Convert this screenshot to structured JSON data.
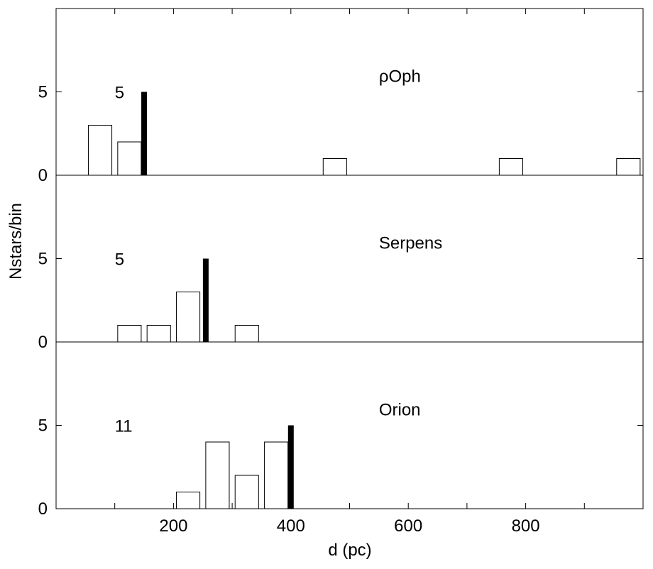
{
  "colors": {
    "frame": "#000000",
    "bar_fill": "#ffffff",
    "marker": "#000000"
  },
  "chart_data": {
    "type": "bar",
    "xlabel": "d (pc)",
    "ylabel": "Nstars/bin",
    "xlim": [
      0,
      1000
    ],
    "x_ticks": [
      200,
      400,
      600,
      800
    ],
    "x_minor_ticks": [
      100,
      300,
      500,
      700,
      900
    ],
    "y_ticks_per_panel": [
      0,
      5
    ],
    "bin_width": 40,
    "grid": false,
    "panels": [
      {
        "name": "ρOph",
        "count_label": "5",
        "ylim": [
          0,
          10
        ],
        "marker_d": 150,
        "marker_value": 5,
        "bars": [
          {
            "d": 75,
            "value": 3
          },
          {
            "d": 125,
            "value": 2
          },
          {
            "d": 475,
            "value": 1
          },
          {
            "d": 775,
            "value": 1
          },
          {
            "d": 975,
            "value": 1
          }
        ]
      },
      {
        "name": "Serpens",
        "count_label": "5",
        "ylim": [
          0,
          10
        ],
        "marker_d": 255,
        "marker_value": 5,
        "bars": [
          {
            "d": 125,
            "value": 1
          },
          {
            "d": 175,
            "value": 1
          },
          {
            "d": 225,
            "value": 3
          },
          {
            "d": 325,
            "value": 1
          }
        ]
      },
      {
        "name": "Orion",
        "count_label": "11",
        "ylim": [
          0,
          10
        ],
        "marker_d": 400,
        "marker_value": 5,
        "bars": [
          {
            "d": 225,
            "value": 1
          },
          {
            "d": 275,
            "value": 4
          },
          {
            "d": 325,
            "value": 2
          },
          {
            "d": 375,
            "value": 4
          }
        ]
      }
    ]
  }
}
